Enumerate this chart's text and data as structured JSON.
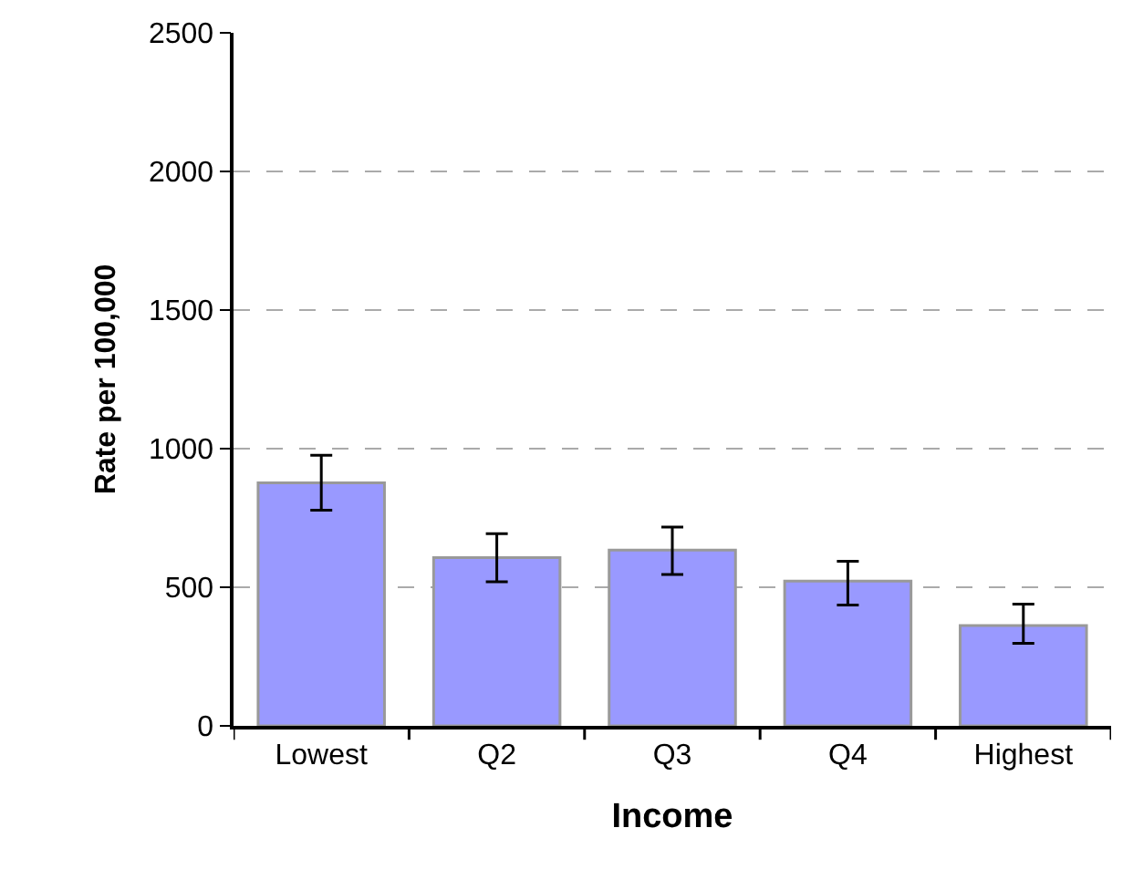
{
  "chart_data": {
    "type": "bar",
    "xlabel": "Income",
    "ylabel": "Rate per 100,000",
    "categories": [
      "Lowest",
      "Q2",
      "Q3",
      "Q4",
      "Highest"
    ],
    "values": [
      877,
      607,
      634,
      522,
      362
    ],
    "errors": [
      [
        778,
        976
      ],
      [
        520,
        693
      ],
      [
        546,
        717
      ],
      [
        436,
        594
      ],
      [
        298,
        439
      ]
    ],
    "color": "#9999ff",
    "ylim": [
      0,
      2500
    ],
    "yticks": [
      0,
      500,
      1000,
      1500,
      2000,
      2500
    ],
    "grid": "y"
  }
}
